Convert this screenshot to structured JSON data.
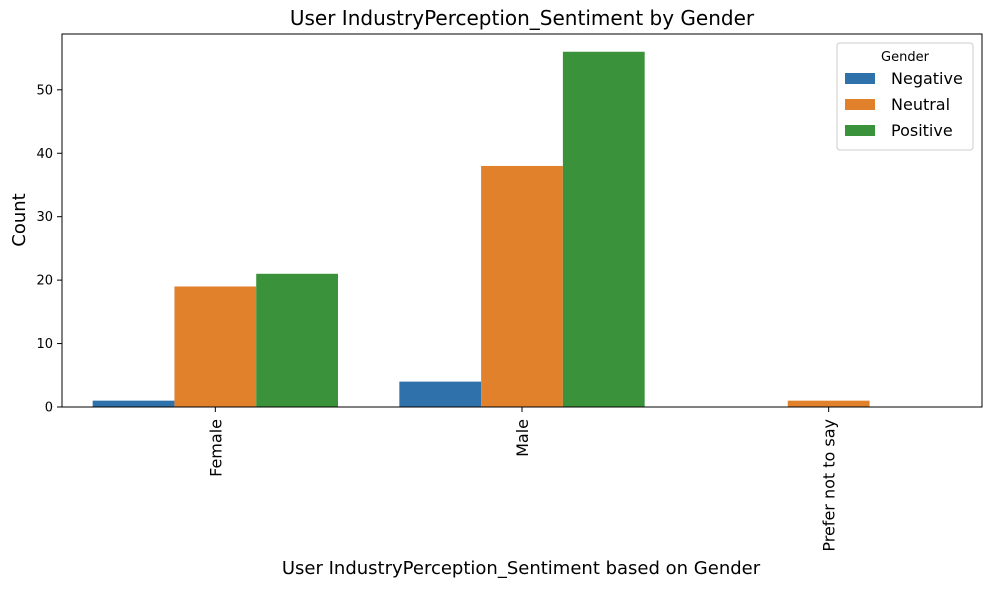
{
  "chart_data": {
    "type": "bar",
    "title": "User IndustryPerception_Sentiment by Gender",
    "xlabel": "User IndustryPerception_Sentiment based on Gender",
    "ylabel": "Count",
    "categories": [
      "Female",
      "Male",
      "Prefer not to say"
    ],
    "series": [
      {
        "name": "Negative",
        "color": "#2f72ab",
        "values": [
          1,
          4,
          0
        ]
      },
      {
        "name": "Neutral",
        "color": "#e1812c",
        "values": [
          19,
          38,
          1
        ]
      },
      {
        "name": "Positive",
        "color": "#3a923a",
        "values": [
          21,
          56,
          0
        ]
      }
    ],
    "ylim": [
      0,
      58.8
    ],
    "yticks": [
      0,
      10,
      20,
      30,
      40,
      50
    ],
    "legend": {
      "title": "Gender",
      "placement": "top-right"
    },
    "grid": false
  }
}
